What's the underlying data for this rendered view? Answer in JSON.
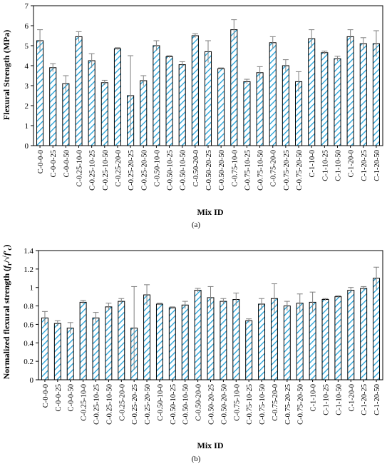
{
  "colors": {
    "bar_hatch": "#1ea0d8",
    "bar_edge": "#000000",
    "bar_fill": "#ffffff",
    "error_bar": "#7f7f7f",
    "axis": "#000000"
  },
  "chart_data": [
    {
      "type": "bar",
      "caption": "(a)",
      "xlabel": "Mix ID",
      "ylabel": "Flexural Strength (MPa)",
      "ylim": [
        0,
        7
      ],
      "yticks": [
        "0",
        "1",
        "2",
        "3",
        "4",
        "5",
        "6",
        "7"
      ],
      "grid": false,
      "pattern": "diagonal-hatch",
      "categories": [
        "C-0-0-0",
        "C-0-0-25",
        "C-0-0-50",
        "C-0.25-10-0",
        "C-0.25-10-25",
        "C-0.25-10-50",
        "C-0.25-20-0",
        "C-0.25-20-25",
        "C-0.25-20-50",
        "C-0.50-10-0",
        "C-0.50-10-25",
        "C-0.50-10-50",
        "C-0.50-20-0",
        "C-0.50-20-25",
        "C-0.50-20-50",
        "C-0.75-10-0",
        "C-0.75-10-25",
        "C-0.75-10-50",
        "C-0.75-20-0",
        "C-0.75-20-25",
        "C-0.75-20-50",
        "C-1-10-0",
        "C-1-10-25",
        "C-1-10-50",
        "C-1-20-0",
        "C-1-20-25",
        "C-1-20-50"
      ],
      "values": [
        5.25,
        3.9,
        3.1,
        5.45,
        4.25,
        3.15,
        4.85,
        2.5,
        3.25,
        5.0,
        4.45,
        4.05,
        5.5,
        4.7,
        3.85,
        5.8,
        3.2,
        3.65,
        5.15,
        4.0,
        3.2,
        5.35,
        4.65,
        4.35,
        5.45,
        5.1,
        5.1
      ],
      "errors": [
        0.55,
        0.2,
        0.4,
        0.25,
        0.35,
        0.12,
        0.05,
        2.0,
        0.25,
        0.25,
        0.05,
        0.15,
        0.1,
        0.55,
        0.04,
        0.5,
        0.12,
        0.3,
        0.3,
        0.3,
        0.5,
        0.45,
        0.08,
        0.12,
        0.35,
        0.3,
        0.65
      ]
    },
    {
      "type": "bar",
      "caption": "(b)",
      "xlabel": "Mix ID",
      "ylabel_main": "Normalized flexural strength (",
      "ylabel_formula": "f",
      "ylabel_sub": "r",
      "ylabel_rest": "/√",
      "ylabel_formula2": "f′",
      "ylabel_sub2": "c",
      "ylabel_close": ")",
      "ylim": [
        0,
        1.4
      ],
      "yticks": [
        "0",
        "0.2",
        "0.4",
        "0.6",
        "0.8",
        "1",
        "1.2",
        "1.4"
      ],
      "grid": false,
      "pattern": "diagonal-hatch",
      "categories": [
        "C-0-0-0",
        "C-0-0-25",
        "C-0-0-50",
        "C-0.25-10-0",
        "C-0.25-10-25",
        "C-0.25-10-50",
        "C-0.25-20-0",
        "C-0.25-20-25",
        "C-0.25-20-50",
        "C-0.50-10-0",
        "C-0.50-10-25",
        "C-0.50-10-50",
        "C-0.50-20-0",
        "C-0.50-20-25",
        "C-0.50-20-50",
        "C-0.75-10-0",
        "C-0.75-10-25",
        "C-0.75-10-50",
        "C-0.75-20-0",
        "C-0.75-20-25",
        "C-0.75-20-50",
        "C-1-10-0",
        "C-1-10-25",
        "C-1-10-50",
        "C-1-20-0",
        "C-1-20-25",
        "C-1-20-50"
      ],
      "values": [
        0.67,
        0.61,
        0.56,
        0.84,
        0.67,
        0.79,
        0.85,
        0.56,
        0.92,
        0.82,
        0.78,
        0.81,
        0.97,
        0.89,
        0.85,
        0.87,
        0.64,
        0.82,
        0.88,
        0.8,
        0.83,
        0.84,
        0.87,
        0.9,
        0.97,
        0.99,
        1.1
      ],
      "errors": [
        0.07,
        0.03,
        0.06,
        0.02,
        0.06,
        0.04,
        0.03,
        0.45,
        0.11,
        0.01,
        0.01,
        0.04,
        0.02,
        0.12,
        0.03,
        0.07,
        0.02,
        0.06,
        0.16,
        0.05,
        0.1,
        0.11,
        0.01,
        0.01,
        0.03,
        0.02,
        0.12
      ]
    }
  ]
}
